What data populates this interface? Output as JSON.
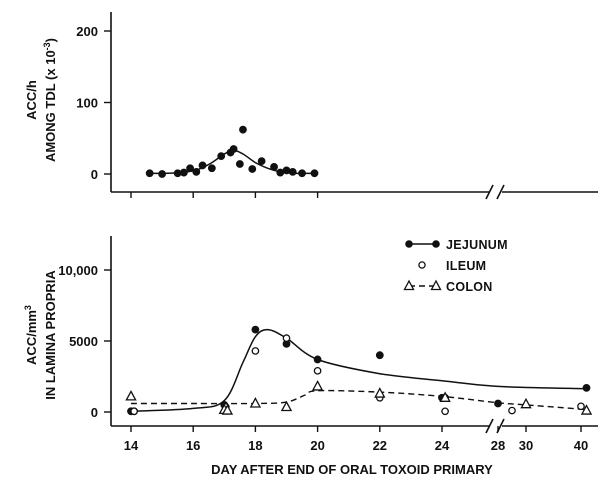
{
  "chart_data": [
    {
      "type": "scatter",
      "panel": "top",
      "ylabel_lines": [
        "ACC/h",
        "AMONG TDL (x 10-3)"
      ],
      "ylabel_line1": "ACC/h",
      "ylabel_line2_base": "AMONG TDL (x 10",
      "ylabel_line2_exp": "-3",
      "ylabel_line2_end": ")",
      "ylim": [
        0,
        200
      ],
      "yticks": [
        "0",
        "100",
        "200"
      ],
      "xlim": [
        14,
        20
      ],
      "axis_break": true,
      "series": [
        {
          "name": "",
          "marker": "filled-circle",
          "curve": "solid",
          "points": [
            [
              14.6,
              1
            ],
            [
              15.0,
              0
            ],
            [
              15.5,
              1
            ],
            [
              15.7,
              2
            ],
            [
              15.9,
              8
            ],
            [
              16.1,
              3
            ],
            [
              16.3,
              12
            ],
            [
              16.6,
              8
            ],
            [
              16.9,
              25
            ],
            [
              17.2,
              30
            ],
            [
              17.5,
              14
            ],
            [
              17.3,
              35
            ],
            [
              17.6,
              62
            ],
            [
              17.9,
              7
            ],
            [
              18.2,
              18
            ],
            [
              18.6,
              10
            ],
            [
              18.8,
              2
            ],
            [
              19.0,
              5
            ],
            [
              19.2,
              3
            ],
            [
              19.5,
              1
            ],
            [
              19.9,
              1
            ]
          ],
          "curve_points": [
            [
              14.6,
              1
            ],
            [
              15.2,
              1
            ],
            [
              15.8,
              3
            ],
            [
              16.2,
              7
            ],
            [
              16.6,
              16
            ],
            [
              17.0,
              28
            ],
            [
              17.3,
              33
            ],
            [
              17.6,
              28
            ],
            [
              18.0,
              16
            ],
            [
              18.4,
              8
            ],
            [
              18.8,
              3
            ],
            [
              19.2,
              1
            ],
            [
              19.9,
              1
            ]
          ]
        }
      ]
    },
    {
      "type": "scatter",
      "panel": "bottom",
      "ylabel_lines": [
        "ACC/mm3",
        "IN LAMINA PROPRIA"
      ],
      "ylabel_line1_base": "ACC/mm",
      "ylabel_line1_exp": "3",
      "ylabel_line2": "IN LAMINA PROPRIA",
      "xlabel": "DAY AFTER END OF ORAL  TOXOID PRIMARY",
      "ylim": [
        0,
        10000
      ],
      "yticks": [
        "0",
        "5000",
        "10,000"
      ],
      "xticks": [
        "14",
        "16",
        "18",
        "20",
        "22",
        "24",
        "28",
        "30",
        "40"
      ],
      "axis_break": true,
      "legend_position": "top-right",
      "series": [
        {
          "name": "JEJUNUM",
          "marker": "filled-circle",
          "curve": "solid",
          "points": [
            [
              "14",
              50
            ],
            [
              "14.1",
              50
            ],
            [
              "17",
              500
            ],
            [
              "18",
              5800
            ],
            [
              "19",
              4800
            ],
            [
              "20",
              3700
            ],
            [
              "22",
              4000
            ],
            [
              "24",
              1000
            ],
            [
              "24.1",
              1000
            ],
            [
              "28",
              600
            ],
            [
              "41",
              1700
            ]
          ],
          "curve_points": [
            [
              "14",
              50
            ],
            [
              "16",
              250
            ],
            [
              "17",
              800
            ],
            [
              "17.6",
              3500
            ],
            [
              "18",
              5300
            ],
            [
              "18.4",
              5800
            ],
            [
              "19",
              5200
            ],
            [
              "20",
              3700
            ],
            [
              "22",
              2700
            ],
            [
              "24",
              2200
            ],
            [
              "28",
              1800
            ],
            [
              "40",
              1650
            ],
            [
              "41",
              1700
            ]
          ]
        },
        {
          "name": "ILEUM",
          "marker": "open-circle",
          "curve": "none",
          "points": [
            [
              "14.1",
              50
            ],
            [
              "17.05",
              350
            ],
            [
              "18",
              4300
            ],
            [
              "19",
              5200
            ],
            [
              "20",
              2900
            ],
            [
              "22",
              1000
            ],
            [
              "24.1",
              50
            ],
            [
              "29",
              100
            ],
            [
              "40",
              400
            ]
          ]
        },
        {
          "name": "COLON",
          "marker": "open-triangle",
          "curve": "dashed",
          "points": [
            [
              "14",
              1100
            ],
            [
              "17",
              150
            ],
            [
              "17.1",
              100
            ],
            [
              "18",
              600
            ],
            [
              "19",
              350
            ],
            [
              "20",
              1800
            ],
            [
              "22",
              1300
            ],
            [
              "24.1",
              1000
            ],
            [
              "30",
              550
            ],
            [
              "41",
              100
            ]
          ],
          "curve_points": [
            [
              "14",
              600
            ],
            [
              "16",
              600
            ],
            [
              "18",
              600
            ],
            [
              "19",
              700
            ],
            [
              "19.6",
              1200
            ],
            [
              "20",
              1500
            ],
            [
              "22",
              1400
            ],
            [
              "24",
              1100
            ],
            [
              "28",
              650
            ],
            [
              "30",
              500
            ],
            [
              "40",
              200
            ],
            [
              "41",
              100
            ]
          ]
        }
      ]
    }
  ]
}
